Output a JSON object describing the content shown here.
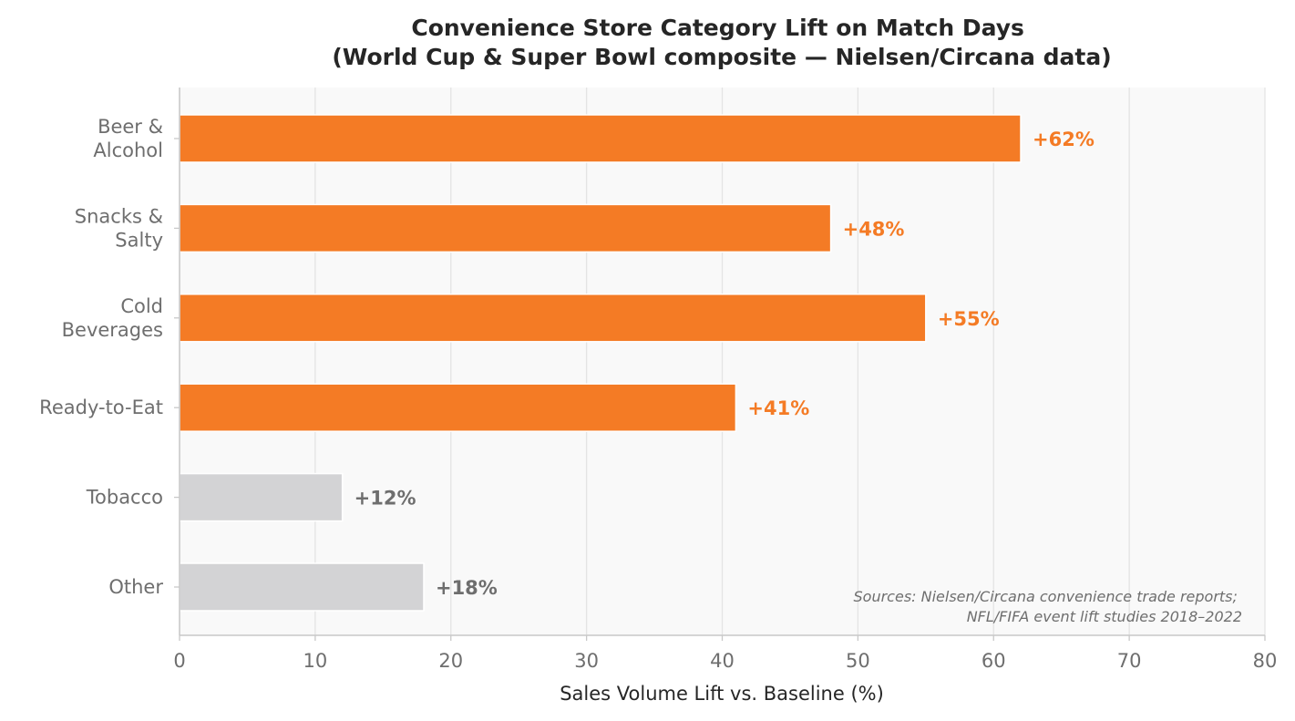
{
  "chart_data": {
    "type": "bar",
    "orientation": "horizontal",
    "title_lines": [
      "Convenience Store Category Lift on Match Days",
      "(World Cup & Super Bowl composite — Nielsen/Circana data)"
    ],
    "xlabel": "Sales Volume Lift vs. Baseline (%)",
    "ylabel": "",
    "xlim": [
      0,
      80
    ],
    "xticks": [
      "0",
      "10",
      "20",
      "30",
      "40",
      "50",
      "60",
      "70",
      "80"
    ],
    "categories": [
      [
        "Beer &",
        "Alcohol"
      ],
      [
        "Snacks &",
        "Salty"
      ],
      [
        "Cold",
        "Beverages"
      ],
      [
        "Ready-to-Eat"
      ],
      [
        "Tobacco"
      ],
      [
        "Other"
      ]
    ],
    "values": [
      62,
      48,
      55,
      41,
      12,
      18
    ],
    "value_labels": [
      "+62%",
      "+48%",
      "+55%",
      "+41%",
      "+12%",
      "+18%"
    ],
    "highlighted": [
      true,
      true,
      true,
      true,
      false,
      false
    ],
    "grid": "vertical",
    "source_note": [
      "Sources: Nielsen/Circana convenience trade reports;",
      "NFL/FIFA event lift studies 2018–2022"
    ],
    "colors": {
      "highlight": "#f47b25",
      "muted": "#d3d3d5",
      "muted_label": "#6e6e6e",
      "plot_background": "#f9f9f9",
      "grid": "#e4e4e4"
    }
  }
}
